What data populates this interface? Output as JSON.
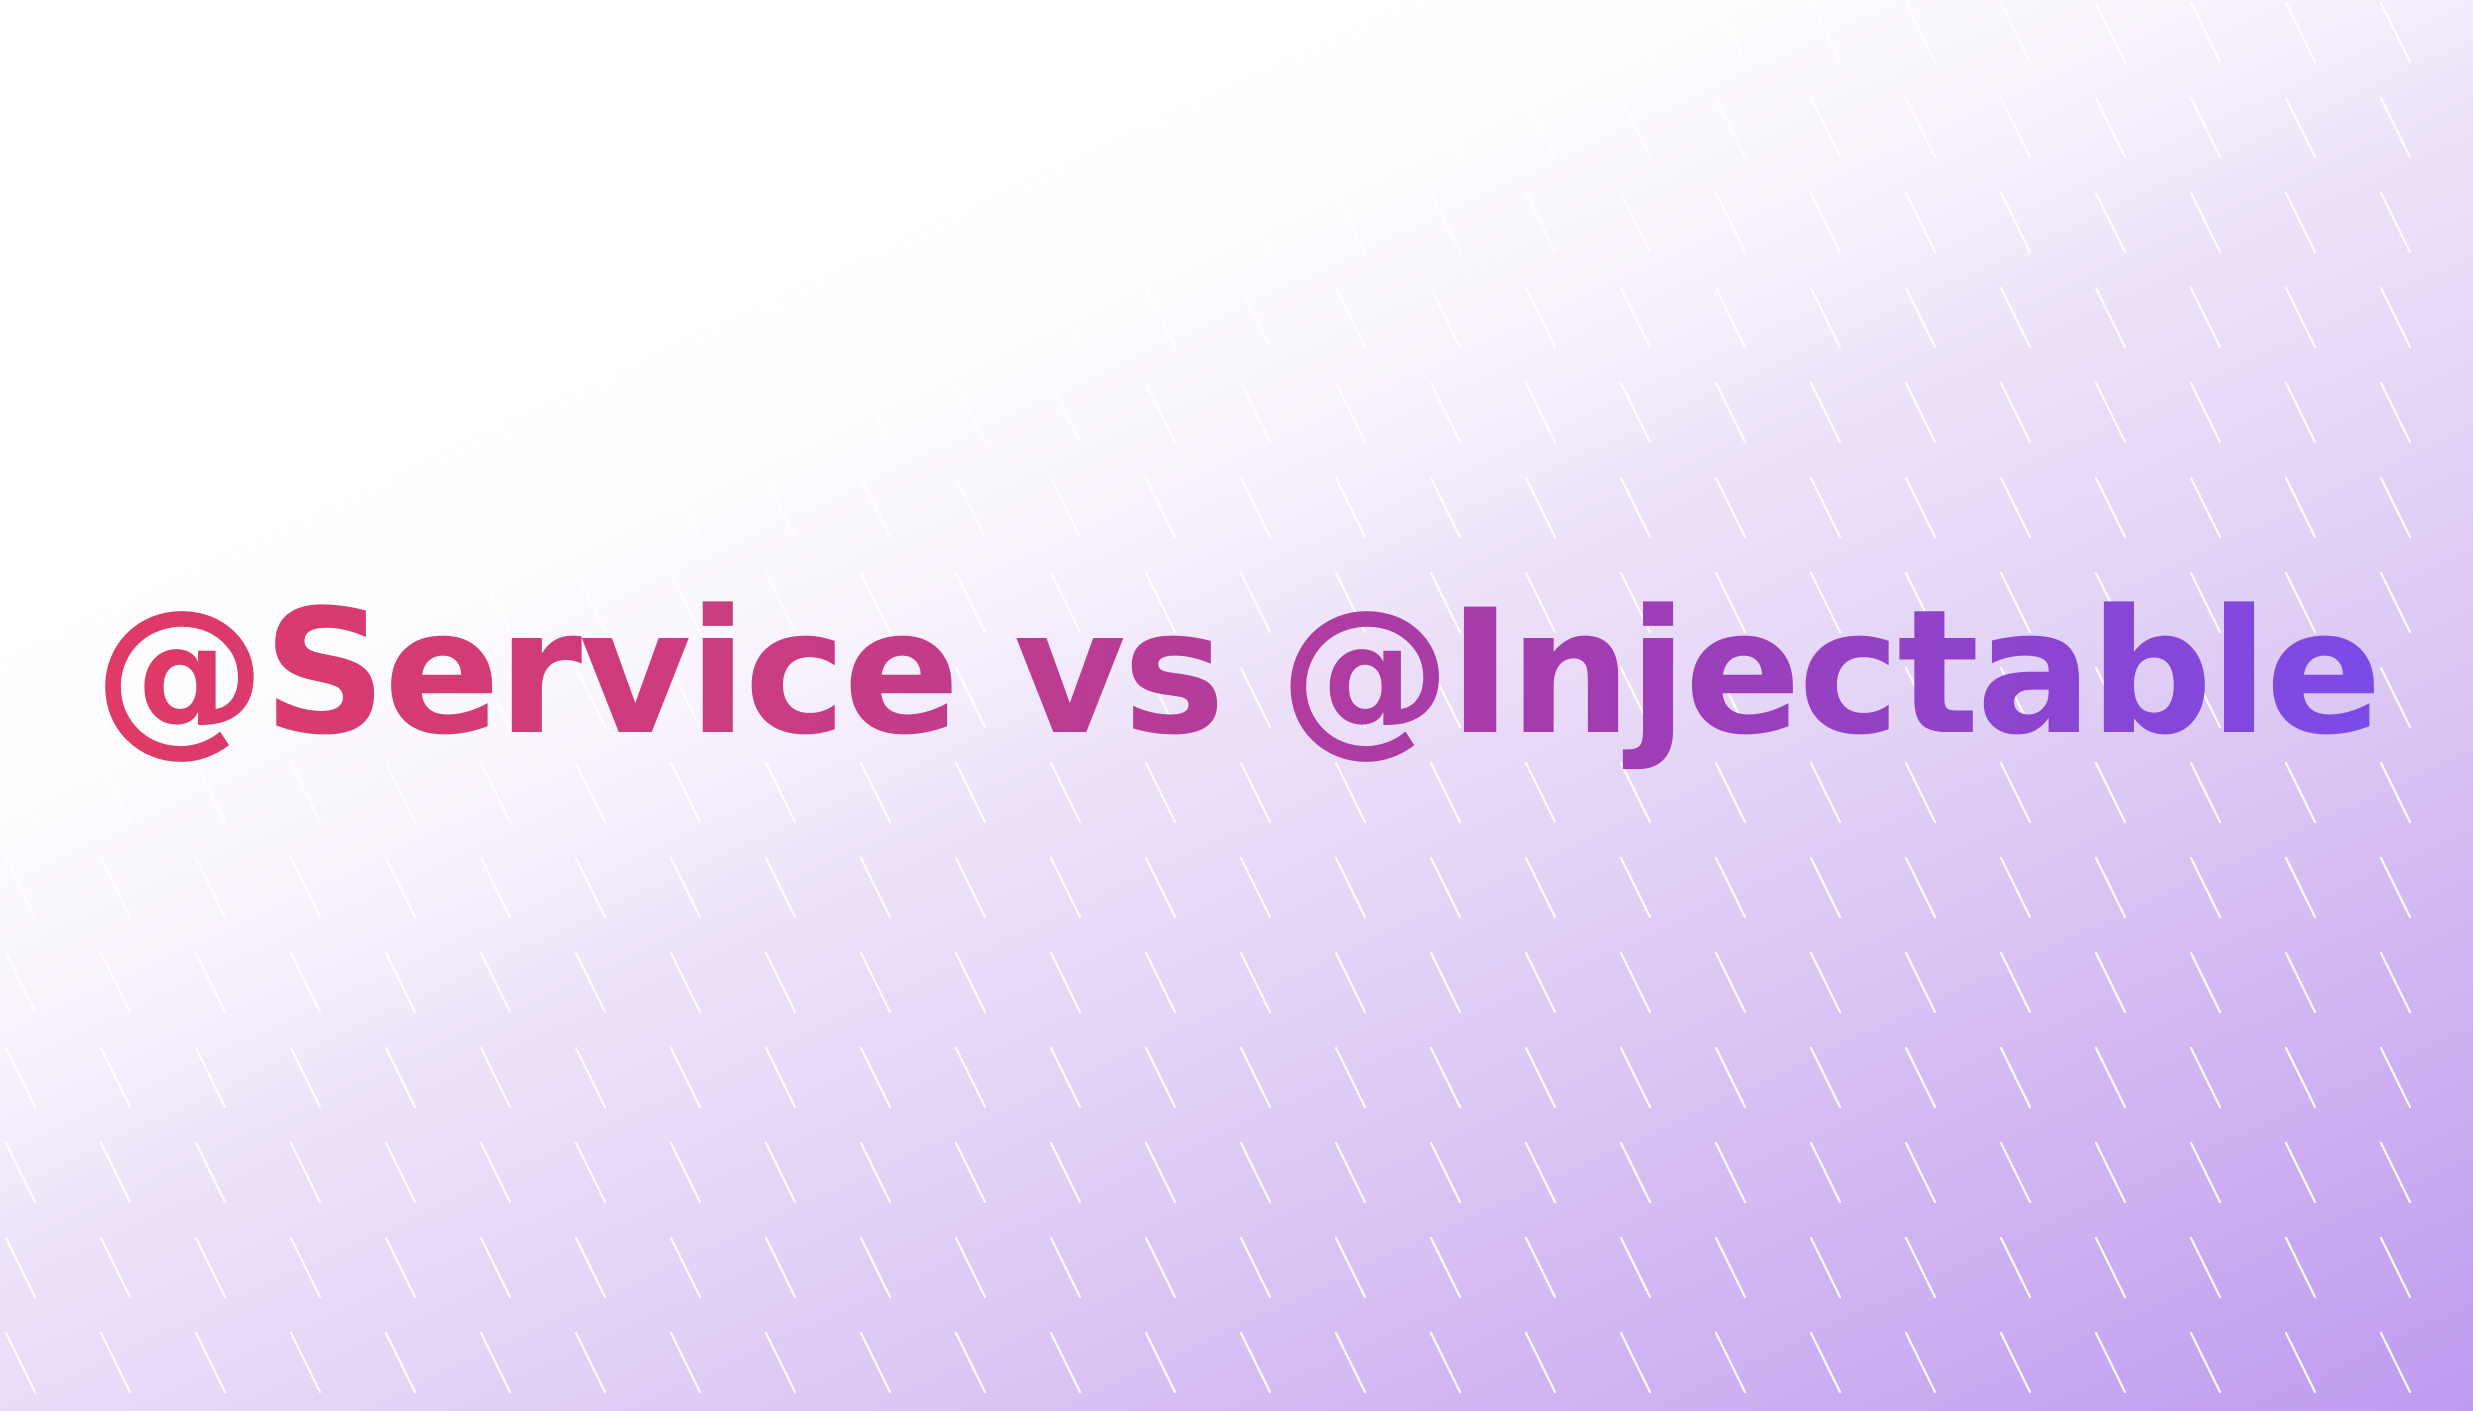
{
  "title": "@Service vs @Injectable",
  "colors": {
    "title_gradient_start": "#e03a66",
    "title_gradient_mid": "#a23cb0",
    "title_gradient_end": "#7b4be8",
    "background_light": "#ffffff",
    "background_dark": "#bf9bf0",
    "pattern_stroke": "#ffffff"
  },
  "background": {
    "pattern": "diagonal-dashes"
  }
}
